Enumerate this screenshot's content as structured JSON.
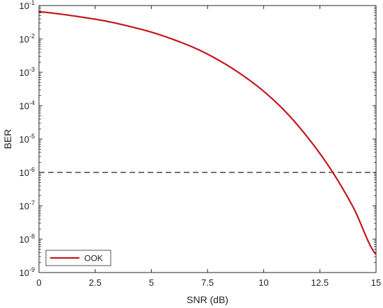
{
  "chart_data": {
    "type": "line",
    "title": "",
    "xlabel": "SNR (dB)",
    "ylabel": "BER",
    "xlim": [
      0,
      15
    ],
    "ylim": [
      1e-09,
      0.1
    ],
    "yscale": "log",
    "grid": false,
    "legend_position": "bottom-left",
    "x_ticks": [
      {
        "value": 0,
        "label": "0"
      },
      {
        "value": 2.5,
        "label": "2.5"
      },
      {
        "value": 5,
        "label": "5"
      },
      {
        "value": 7.5,
        "label": "7.5"
      },
      {
        "value": 10,
        "label": "10"
      },
      {
        "value": 12.5,
        "label": "12.5"
      },
      {
        "value": 15,
        "label": "15"
      }
    ],
    "y_ticks": [
      {
        "exponent": -1,
        "base": "10",
        "power": "-1"
      },
      {
        "exponent": -2,
        "base": "10",
        "power": "-2"
      },
      {
        "exponent": -3,
        "base": "10",
        "power": "-3"
      },
      {
        "exponent": -4,
        "base": "10",
        "power": "-4"
      },
      {
        "exponent": -5,
        "base": "10",
        "power": "-5"
      },
      {
        "exponent": -6,
        "base": "10",
        "power": "-6"
      },
      {
        "exponent": -7,
        "base": "10",
        "power": "-7"
      },
      {
        "exponent": -8,
        "base": "10",
        "power": "-8"
      },
      {
        "exponent": -9,
        "base": "10",
        "power": "-9"
      }
    ],
    "series": [
      {
        "name": "OOK",
        "color": "#c4161c",
        "x": [
          0,
          1,
          2,
          3,
          4,
          5,
          6,
          7,
          8,
          9,
          10,
          11,
          12,
          13,
          14,
          15
        ],
        "y": [
          0.065,
          0.055,
          0.044,
          0.034,
          0.024,
          0.016,
          0.0095,
          0.0051,
          0.0023,
          0.00087,
          0.00027,
          6.3e-05,
          1.03e-05,
          1.2e-06,
          8.6e-08,
          3.5e-09
        ]
      }
    ],
    "reference_lines": [
      {
        "type": "horizontal",
        "value": 1e-06,
        "style": "dashed",
        "color": "#222222"
      }
    ]
  }
}
